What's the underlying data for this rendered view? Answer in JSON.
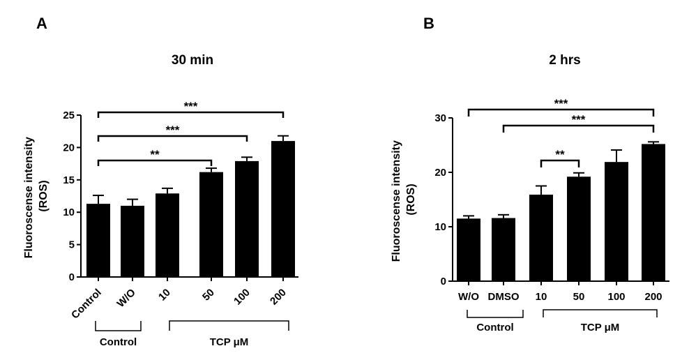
{
  "chart_data": [
    {
      "type": "bar",
      "panel": "A",
      "title": "30 min",
      "ylabel": [
        "Fluoroscense intensity",
        "(ROS)"
      ],
      "xlabel": "",
      "ylim": [
        0,
        25
      ],
      "yticks": [
        0,
        5,
        10,
        15,
        20,
        25
      ],
      "categories": [
        "Control",
        "W/O",
        "10",
        "50",
        "100",
        "200"
      ],
      "values": [
        11.3,
        11.0,
        12.9,
        16.2,
        17.9,
        21.0
      ],
      "errors": [
        1.3,
        1.0,
        0.8,
        0.6,
        0.6,
        0.8
      ],
      "significance": [
        {
          "from": 0,
          "to": 5,
          "label": "***"
        },
        {
          "from": 0,
          "to": 4,
          "label": "***"
        },
        {
          "from": 0,
          "to": 3,
          "label": "**"
        }
      ],
      "groups": [
        {
          "label": "Control",
          "from": 0,
          "to": 1
        },
        {
          "label": "TCP μM",
          "from": 2,
          "to": 5
        }
      ],
      "grid": false,
      "legend": "none"
    },
    {
      "type": "bar",
      "panel": "B",
      "title": "2 hrs",
      "ylabel": [
        "Fluoroscense intensity",
        "(ROS)"
      ],
      "xlabel": "",
      "ylim": [
        0,
        30
      ],
      "yticks": [
        0,
        10,
        20,
        30
      ],
      "categories": [
        "W/O",
        "DMSO",
        "10",
        "50",
        "100",
        "200"
      ],
      "values": [
        11.5,
        11.6,
        15.9,
        19.2,
        21.9,
        25.2
      ],
      "errors": [
        0.5,
        0.6,
        1.6,
        0.7,
        2.2,
        0.4
      ],
      "significance": [
        {
          "from": 0,
          "to": 5,
          "label": "***"
        },
        {
          "from": 1,
          "to": 5,
          "label": "***"
        },
        {
          "from": 2,
          "to": 3,
          "label": "**"
        }
      ],
      "groups": [
        {
          "label": "Control",
          "from": 0,
          "to": 1
        },
        {
          "label": "TCP μM",
          "from": 2,
          "to": 5
        }
      ],
      "grid": false,
      "legend": "none"
    }
  ]
}
